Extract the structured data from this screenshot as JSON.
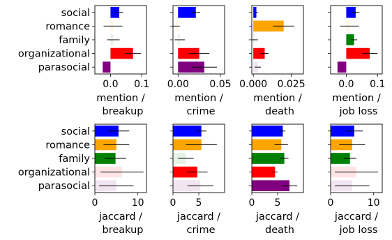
{
  "colors": {
    "social": "#0000ff",
    "romance": "#ffa500",
    "family": "#008000",
    "organizational": "#ff0000",
    "parasocial": "#800080",
    "errorbar": "#000000"
  },
  "chart_data": [
    {
      "type": "bar",
      "orientation": "horizontal",
      "xlabel": "mention /\nbreakup",
      "xlim": [
        -0.05,
        0.115
      ],
      "xticks": [
        0.0,
        0.1
      ],
      "xticklabels": [
        "0.0",
        "0.1"
      ],
      "show_categories": true,
      "categories": [
        "social",
        "romance",
        "family",
        "organizational",
        "parasocial"
      ],
      "values": [
        0.028,
        0.008,
        0.009,
        0.072,
        -0.025
      ],
      "errors": [
        0.012,
        0.03,
        0.02,
        0.025,
        0.0
      ],
      "alphas": [
        1,
        0.1,
        0.1,
        1,
        1
      ]
    },
    {
      "type": "bar",
      "orientation": "horizontal",
      "xlabel": "mention /\ncrime",
      "xlim": [
        -0.006,
        0.055
      ],
      "xticks": [
        0.0,
        0.05
      ],
      "xticklabels": [
        "0.00",
        "0.05"
      ],
      "show_categories": false,
      "categories": [
        "social",
        "romance",
        "family",
        "organizational",
        "parasocial"
      ],
      "values": [
        0.021,
        -0.002,
        0.002,
        0.025,
        0.031
      ],
      "errors": [
        0.005,
        0.004,
        0.006,
        0.012,
        0.015
      ],
      "alphas": [
        1,
        0.1,
        0.1,
        1,
        1
      ]
    },
    {
      "type": "bar",
      "orientation": "horizontal",
      "xlabel": "mention /\ndeath",
      "xlim": [
        -0.001,
        0.033
      ],
      "xticks": [
        0.0,
        0.025
      ],
      "xticklabels": [
        "0.000",
        "0.025"
      ],
      "show_categories": false,
      "categories": [
        "social",
        "romance",
        "family",
        "organizational",
        "parasocial"
      ],
      "values": [
        0.002,
        0.02,
        0.001,
        0.0075,
        0.003
      ],
      "errors": [
        0.001,
        0.007,
        0.002,
        0.0025,
        0.002
      ],
      "alphas": [
        1,
        1,
        0.1,
        1,
        0.1
      ]
    },
    {
      "type": "bar",
      "orientation": "horizontal",
      "xlabel": "mention /\njob loss",
      "xlim": [
        -0.05,
        0.115
      ],
      "xticks": [
        0.0,
        0.1
      ],
      "xticklabels": [
        "0.0",
        "0.1"
      ],
      "show_categories": false,
      "categories": [
        "social",
        "romance",
        "family",
        "organizational",
        "parasocial"
      ],
      "values": [
        0.03,
        0.01,
        0.025,
        0.075,
        -0.028
      ],
      "errors": [
        0.012,
        0.03,
        0.01,
        0.025,
        0.0
      ],
      "alphas": [
        1,
        0.1,
        1,
        1,
        1
      ]
    },
    {
      "type": "bar",
      "orientation": "horizontal",
      "xlabel": "jaccard /\nbreakup",
      "xlim": [
        0,
        12
      ],
      "xticks": [
        0,
        10
      ],
      "xticklabels": [
        "0",
        "10"
      ],
      "show_categories": true,
      "categories": [
        "social",
        "romance",
        "family",
        "organizational",
        "parasocial"
      ],
      "values": [
        5.5,
        5.0,
        4.8,
        6.3,
        5.0
      ],
      "errors": [
        2.5,
        3.0,
        2.5,
        5.0,
        4.0
      ],
      "alphas": [
        1,
        1,
        1,
        0.1,
        0.1
      ]
    },
    {
      "type": "bar",
      "orientation": "horizontal",
      "xlabel": "jaccard /\ncrime",
      "xlim": [
        0,
        10
      ],
      "xticks": [
        0,
        5
      ],
      "xticklabels": [
        "0",
        "5"
      ],
      "show_categories": false,
      "categories": [
        "social",
        "romance",
        "family",
        "organizational",
        "parasocial"
      ],
      "values": [
        5.5,
        5.5,
        2.5,
        4.7,
        5.3
      ],
      "errors": [
        1.0,
        3.0,
        1.5,
        2.0,
        2.5
      ],
      "alphas": [
        1,
        1,
        0.1,
        1,
        0.1
      ]
    },
    {
      "type": "bar",
      "orientation": "horizontal",
      "xlabel": "jaccard /\ndeath",
      "xlim": [
        0,
        10
      ],
      "xticks": [
        0,
        5
      ],
      "xticklabels": [
        "0",
        "5"
      ],
      "show_categories": false,
      "categories": [
        "social",
        "romance",
        "family",
        "organizational",
        "parasocial"
      ],
      "values": [
        6.0,
        5.7,
        6.3,
        4.5,
        7.3
      ],
      "errors": [
        0.5,
        1.3,
        0.8,
        0.5,
        1.5
      ],
      "alphas": [
        1,
        1,
        1,
        1,
        1
      ]
    },
    {
      "type": "bar",
      "orientation": "horizontal",
      "xlabel": "jaccard /\njob loss",
      "xlim": [
        0,
        12
      ],
      "xticks": [
        0,
        10
      ],
      "xticklabels": [
        "0",
        "10"
      ],
      "show_categories": false,
      "categories": [
        "social",
        "romance",
        "family",
        "organizational",
        "parasocial"
      ],
      "values": [
        5.5,
        5.0,
        4.5,
        6.0,
        5.0
      ],
      "errors": [
        2.0,
        3.0,
        1.5,
        5.0,
        4.0
      ],
      "alphas": [
        1,
        1,
        1,
        0.1,
        0.1
      ]
    }
  ]
}
